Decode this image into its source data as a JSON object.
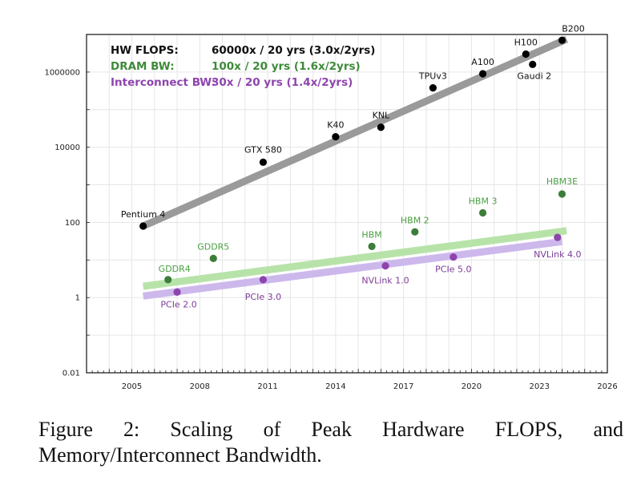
{
  "caption": "Figure 2: Scaling of Peak Hardware FLOPS, and Memory/Interconnect Bandwidth.",
  "chart_data": {
    "type": "scatter",
    "yscale": "log",
    "xlim": [
      2003,
      2026
    ],
    "ylim": [
      0.01,
      10000000
    ],
    "xticks": [
      2005,
      2008,
      2011,
      2014,
      2017,
      2020,
      2023,
      2026
    ],
    "yticks": [
      {
        "value": 0.01,
        "label": "0.01"
      },
      {
        "value": 1,
        "label": "1"
      },
      {
        "value": 100,
        "label": "100"
      },
      {
        "value": 10000,
        "label": "10000"
      },
      {
        "value": 1000000,
        "label": "1000000"
      }
    ],
    "grid": true,
    "legend_position": "top-left",
    "legend": [
      {
        "name": "HW FLOPS:",
        "summary": "60000x / 20 yrs (3.0x/2yrs)",
        "color": "#000000"
      },
      {
        "name": "DRAM BW:",
        "summary": "100x / 20 yrs (1.6x/2yrs)",
        "color": "#3f8a3a"
      },
      {
        "name": "Interconnect BW:",
        "summary": "30x / 20 yrs (1.4x/2yrs)",
        "color": "#8e44ad"
      }
    ],
    "series": [
      {
        "key": "flops",
        "color": "#000000",
        "point_color": "#000000",
        "label_color": "#111111",
        "trend_color": "#9a9a9a",
        "trend": [
          [
            2005.5,
            80
          ],
          [
            2024.2,
            7500000
          ]
        ],
        "points": [
          {
            "label": "Pentium 4",
            "x": 2005.5,
            "y": 80
          },
          {
            "label": "GTX 580",
            "x": 2010.8,
            "y": 4000
          },
          {
            "label": "K40",
            "x": 2014.0,
            "y": 19000
          },
          {
            "label": "KNL",
            "x": 2016.0,
            "y": 34000
          },
          {
            "label": "TPUv3",
            "x": 2018.3,
            "y": 380000
          },
          {
            "label": "A100",
            "x": 2020.5,
            "y": 900000
          },
          {
            "label": "H100",
            "x": 2022.4,
            "y": 3000000
          },
          {
            "label": "Gaudi 2",
            "x": 2022.7,
            "y": 1600000
          },
          {
            "label": "B200",
            "x": 2024.0,
            "y": 7000000
          }
        ]
      },
      {
        "key": "dram",
        "color": "#3f8a3a",
        "point_color": "#3c7d39",
        "label_color": "#4aa043",
        "trend_color": "#b7e3a9",
        "trend": [
          [
            2005.5,
            2.0
          ],
          [
            2024.2,
            60
          ]
        ],
        "points": [
          {
            "label": "GDDR4",
            "x": 2006.6,
            "y": 3
          },
          {
            "label": "GDDR5",
            "x": 2008.6,
            "y": 11
          },
          {
            "label": "HBM",
            "x": 2015.6,
            "y": 23
          },
          {
            "label": "HBM 2",
            "x": 2017.5,
            "y": 56
          },
          {
            "label": "HBM 3",
            "x": 2020.5,
            "y": 180
          },
          {
            "label": "HBM3E",
            "x": 2024.0,
            "y": 570
          }
        ]
      },
      {
        "key": "interconnect",
        "color": "#8e44ad",
        "point_color": "#8e44ad",
        "label_color": "#7d3c98",
        "trend_color": "#cdb8ec",
        "trend": [
          [
            2005.5,
            1.1
          ],
          [
            2024.0,
            31
          ]
        ],
        "points": [
          {
            "label": "PCIe 2.0",
            "x": 2007.0,
            "y": 1.4
          },
          {
            "label": "PCIe 3.0",
            "x": 2010.8,
            "y": 3.0
          },
          {
            "label": "NVLink 1.0",
            "x": 2016.2,
            "y": 7.0
          },
          {
            "label": "PCIe 5.0",
            "x": 2019.2,
            "y": 12
          },
          {
            "label": "NVLink 4.0",
            "x": 2023.8,
            "y": 40
          }
        ]
      }
    ]
  }
}
